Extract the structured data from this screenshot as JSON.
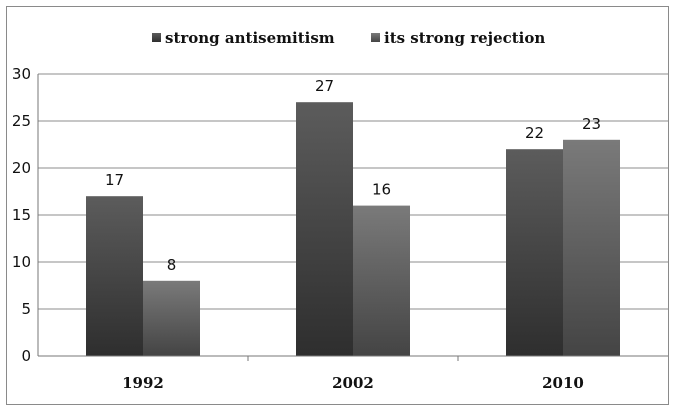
{
  "chart_data": {
    "type": "bar",
    "categories": [
      "1992",
      "2002",
      "2010"
    ],
    "series": [
      {
        "name": "strong antisemitism",
        "values": [
          17,
          27,
          22
        ],
        "color": "#3e3e3e"
      },
      {
        "name": "its strong rejection",
        "values": [
          8,
          16,
          23
        ],
        "color": "#585858"
      }
    ],
    "title": "",
    "xlabel": "",
    "ylabel": "",
    "ylim": [
      0,
      30
    ],
    "yticks": [
      0,
      5,
      10,
      15,
      20,
      25,
      30
    ],
    "grid": true,
    "legend_position": "top-center",
    "data_labels": true
  }
}
